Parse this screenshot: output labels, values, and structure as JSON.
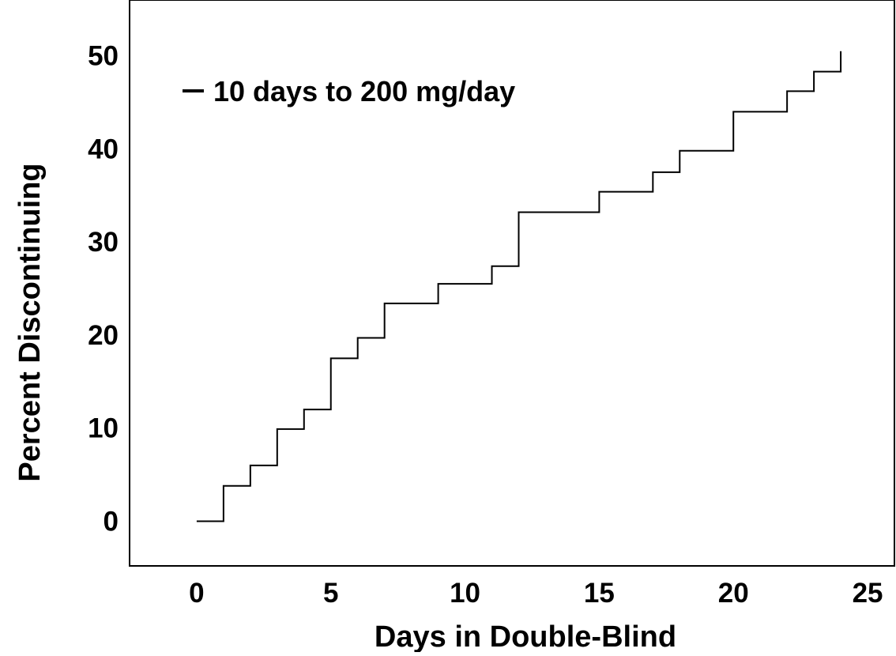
{
  "chart_data": {
    "type": "line",
    "xlabel": "Days in Double-Blind",
    "ylabel": "Percent Discontinuing",
    "xlim": [
      -2.5,
      26
    ],
    "ylim": [
      -4.8,
      56
    ],
    "xticks": [
      0,
      5,
      10,
      15,
      20,
      25
    ],
    "yticks": [
      0,
      10,
      20,
      30,
      40,
      50
    ],
    "xtick_labels": [
      "0",
      "5",
      "10",
      "15",
      "20",
      "25"
    ],
    "ytick_labels": [
      "0",
      "10",
      "20",
      "30",
      "40",
      "50"
    ],
    "grid": false,
    "legend_position": "top-left",
    "step_style": "post",
    "series": [
      {
        "name": "10 days to 200 mg/day",
        "color": "#000000",
        "x": [
          0,
          1,
          2,
          3,
          4,
          5,
          6,
          7,
          9,
          11,
          12,
          15,
          17,
          18,
          20,
          22,
          23,
          24
        ],
        "y": [
          0,
          3.8,
          6,
          9.9,
          12,
          17.5,
          19.7,
          23.4,
          25.5,
          27.4,
          33.2,
          35.4,
          37.5,
          39.8,
          44,
          46.2,
          48.3,
          50.5
        ]
      }
    ]
  }
}
